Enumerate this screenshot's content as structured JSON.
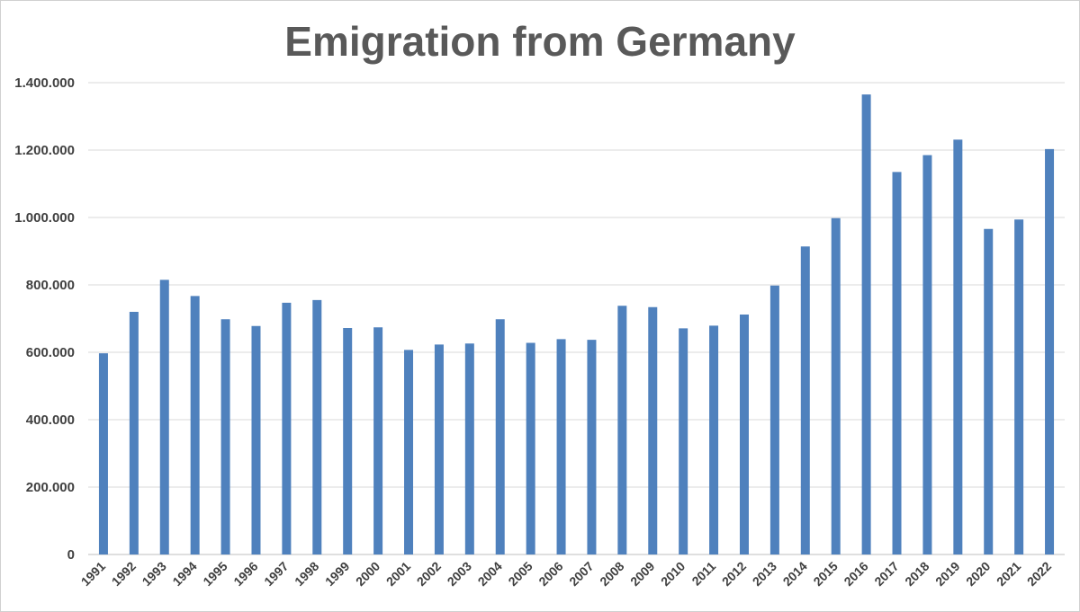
{
  "chart_data": {
    "type": "bar",
    "title": "Emigration from Germany",
    "xlabel": "",
    "ylabel": "",
    "ylim": [
      0,
      1400000
    ],
    "y_ticks": [
      0,
      200000,
      400000,
      600000,
      800000,
      1000000,
      1200000,
      1400000
    ],
    "y_tick_labels": [
      "0",
      "200.000",
      "400.000",
      "600.000",
      "800.000",
      "1.000.000",
      "1.200.000",
      "1.400.000"
    ],
    "grid": true,
    "legend": "none",
    "bar_color": "#4F81BD",
    "categories": [
      "1991",
      "1992",
      "1993",
      "1994",
      "1995",
      "1996",
      "1997",
      "1998",
      "1999",
      "2000",
      "2001",
      "2002",
      "2003",
      "2004",
      "2005",
      "2006",
      "2007",
      "2008",
      "2009",
      "2010",
      "2011",
      "2012",
      "2013",
      "2014",
      "2015",
      "2016",
      "2017",
      "2018",
      "2019",
      "2020",
      "2021",
      "2022"
    ],
    "values": [
      597000,
      720000,
      815000,
      767000,
      698000,
      678000,
      747000,
      755000,
      672000,
      674000,
      607000,
      623000,
      626000,
      698000,
      628000,
      639000,
      637000,
      738000,
      734000,
      671000,
      679000,
      712000,
      798000,
      914000,
      998000,
      1365000,
      1135000,
      1185000,
      1231000,
      966000,
      994000,
      1203000
    ]
  }
}
